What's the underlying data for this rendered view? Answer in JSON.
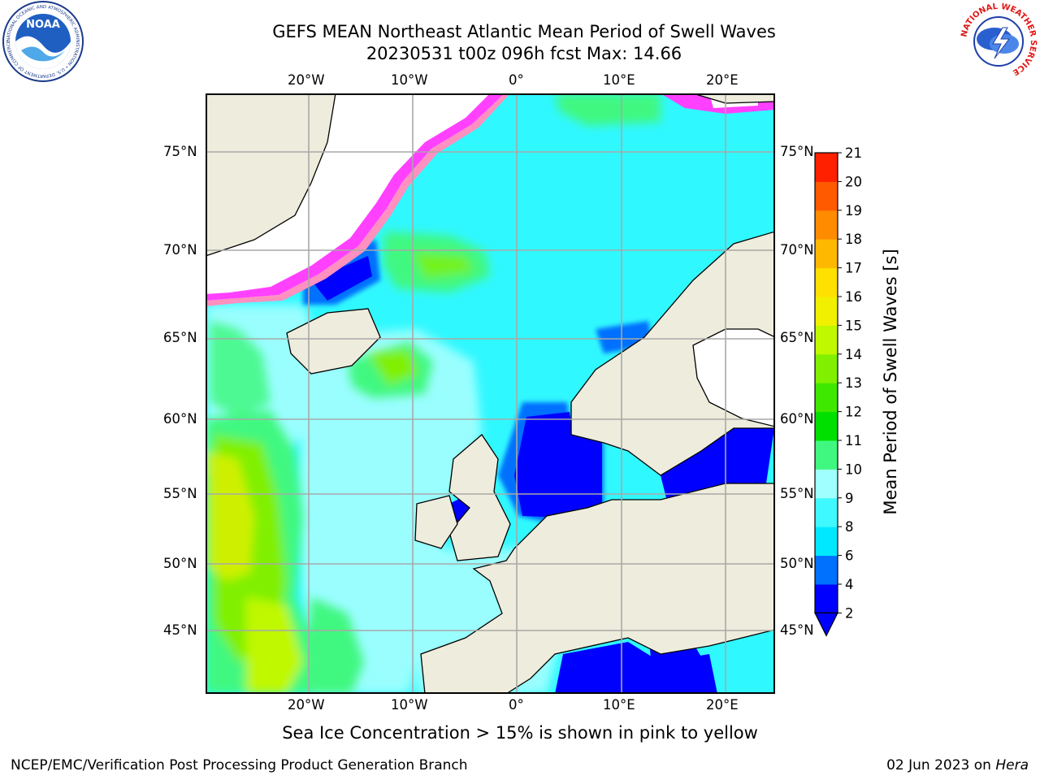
{
  "title_line1": "GEFS MEAN Northeast Atlantic Mean Period of Swell Waves",
  "title_line2": "20230531 t00z 096h fcst   Max: 14.66",
  "logos": {
    "noaa": {
      "text": "NOAA",
      "ring_text": "NATIONAL OCEANIC AND ATMOSPHERIC ADMINISTRATION • U.S. DEPARTMENT OF COMMERCE"
    },
    "nws": {
      "ring_text": "NATIONAL WEATHER SERVICE"
    }
  },
  "axes": {
    "lon_labels_top": [
      "20°W",
      "10°W",
      "0°",
      "10°E",
      "20°E"
    ],
    "lon_labels_bottom": [
      "20°W",
      "10°W",
      "0°",
      "10°E",
      "20°E"
    ],
    "lat_labels_left": [
      "75°N",
      "70°N",
      "65°N",
      "60°N",
      "55°N",
      "50°N",
      "45°N"
    ],
    "lat_labels_right": [
      "75°N",
      "70°N",
      "65°N",
      "60°N",
      "55°N",
      "50°N",
      "45°N"
    ]
  },
  "colorbar": {
    "label": "Mean Period of Swell Waves [s]",
    "ticks": [
      "2",
      "4",
      "6",
      "8",
      "9",
      "10",
      "11",
      "12",
      "13",
      "14",
      "15",
      "16",
      "17",
      "18",
      "19",
      "20",
      "21"
    ],
    "colors": [
      "#0000ff",
      "#0070ff",
      "#00e8ff",
      "#40f8ff",
      "#a0ffff",
      "#40f880",
      "#00e000",
      "#40e800",
      "#80f000",
      "#c0f800",
      "#f0f000",
      "#ffe000",
      "#ffb800",
      "#ff8c00",
      "#ff5a00",
      "#ff2000"
    ],
    "extend_color": "#0000ff"
  },
  "map_colors": {
    "ocean_base": "#30f8ff",
    "land": "#eeecdc",
    "ice": "#ffffff",
    "ice_edge": [
      "#ff40ff",
      "#ff90c0",
      "#ffd060"
    ],
    "grid": "#a8a8a8"
  },
  "bottom_note": "Sea Ice Concentration > 15% is shown in pink to yellow",
  "footer_left": "NCEP/EMC/Verification Post Processing Product Generation Branch",
  "footer_right_prefix": "02 Jun 2023 on ",
  "footer_right_host": "Hera"
}
